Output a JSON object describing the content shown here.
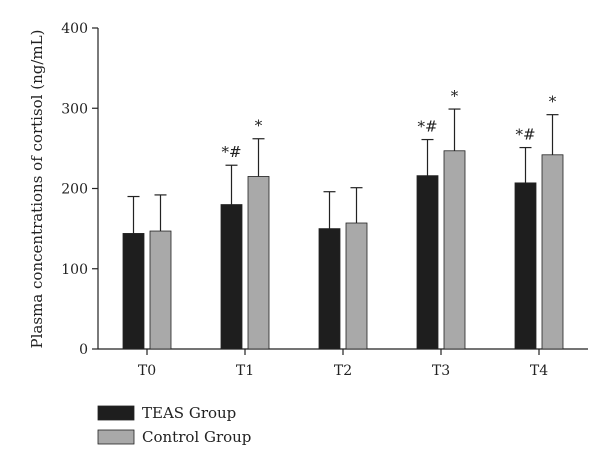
{
  "chart_data": {
    "type": "bar",
    "ylabel": "Plasma concentrations of cortisol (ng/mL)",
    "xlabel": "",
    "ylim": [
      0,
      400
    ],
    "yticks": [
      0,
      100,
      200,
      300,
      400
    ],
    "categories": [
      "T0",
      "T1",
      "T2",
      "T3",
      "T4"
    ],
    "series": [
      {
        "name": "TEAS Group",
        "color": "#1e1e1e",
        "values": [
          144,
          180,
          150,
          216,
          207
        ],
        "error": [
          46,
          49,
          46,
          45,
          44
        ],
        "annotations": [
          "",
          "*#",
          "",
          "*#",
          "*#"
        ]
      },
      {
        "name": "Control Group",
        "color": "#a9a9a9",
        "values": [
          147,
          215,
          157,
          247,
          242
        ],
        "error": [
          45,
          47,
          44,
          52,
          50
        ],
        "annotations": [
          "",
          "*",
          "",
          "*",
          "*"
        ]
      }
    ],
    "legend_position": "bottom-left"
  }
}
